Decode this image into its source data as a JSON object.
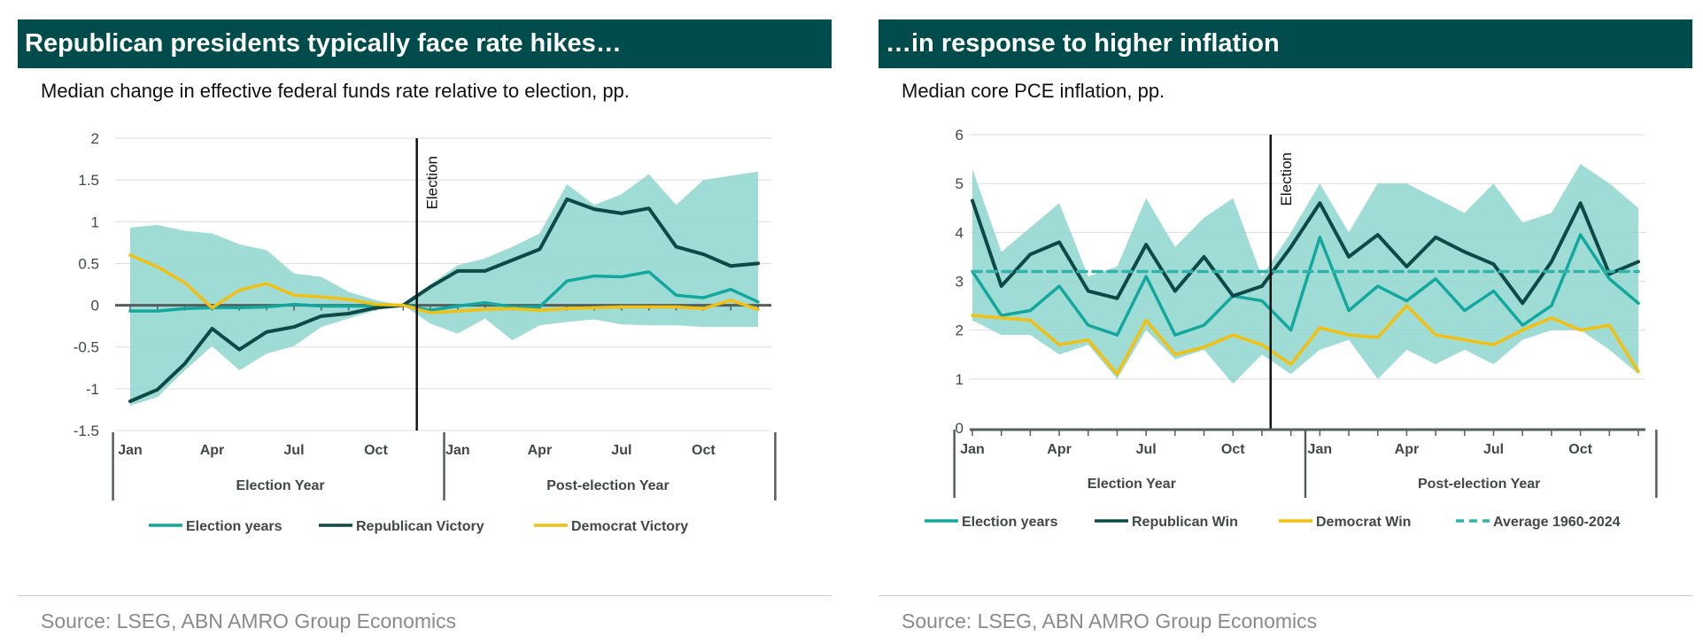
{
  "colors": {
    "banner": "#004c4c",
    "election_years": "#13a89e",
    "republican": "#0d4a47",
    "democrat": "#f2c011",
    "band": "#8fd6cf",
    "average": "#2fb3aa",
    "axis": "#555e5e",
    "grid": "#dcdcdc"
  },
  "panels": [
    {
      "banner": "Republican presidents typically face rate hikes…",
      "subtitle": "Median change in effective federal funds rate relative to election, pp.",
      "source": "Source:  LSEG, ABN AMRO Group Economics"
    },
    {
      "banner": "…in response to higher inflation",
      "subtitle": "Median core PCE inflation, pp.",
      "source": "Source: LSEG, ABN AMRO Group Economics"
    }
  ],
  "chart_data": [
    {
      "type": "line",
      "ylim": [
        -1.5,
        2
      ],
      "yticks": [
        2,
        1.5,
        1,
        0.5,
        0,
        -0.5,
        -1,
        -1.5
      ],
      "ytick_labels": [
        "2",
        "1.5",
        "1",
        "0.5",
        "0",
        "-0.5",
        "-1",
        "-1.5"
      ],
      "x_points": 24,
      "month_labels": [
        {
          "index": 0,
          "label": "Jan"
        },
        {
          "index": 3,
          "label": "Apr"
        },
        {
          "index": 6,
          "label": "Jul"
        },
        {
          "index": 9,
          "label": "Oct"
        },
        {
          "index": 12,
          "label": "Jan"
        },
        {
          "index": 15,
          "label": "Apr"
        },
        {
          "index": 18,
          "label": "Jul"
        },
        {
          "index": 21,
          "label": "Oct"
        }
      ],
      "groups": [
        {
          "label": "Election Year",
          "start": 0,
          "end": 11
        },
        {
          "label": "Post-election Year",
          "start": 12,
          "end": 23
        }
      ],
      "election_marker": {
        "label": "Election",
        "x": 10.5
      },
      "band": {
        "upper": [
          0.93,
          0.96,
          0.89,
          0.86,
          0.73,
          0.66,
          0.38,
          0.34,
          0.16,
          0.06,
          0.0,
          0.25,
          0.48,
          0.56,
          0.7,
          0.86,
          1.45,
          1.2,
          1.33,
          1.57,
          1.2,
          1.5,
          1.55,
          1.6
        ],
        "lower": [
          -1.2,
          -1.1,
          -0.78,
          -0.49,
          -0.78,
          -0.58,
          -0.49,
          -0.26,
          -0.16,
          -0.06,
          0.0,
          -0.22,
          -0.34,
          -0.16,
          -0.42,
          -0.24,
          -0.2,
          -0.17,
          -0.23,
          -0.24,
          -0.24,
          -0.26,
          -0.26,
          -0.26
        ]
      },
      "series": [
        {
          "name": "Election years",
          "color_key": "election_years",
          "values": [
            -0.07,
            -0.07,
            -0.04,
            -0.03,
            -0.03,
            -0.02,
            0.01,
            -0.01,
            -0.01,
            -0.01,
            0.0,
            -0.06,
            -0.01,
            0.03,
            -0.02,
            -0.02,
            0.29,
            0.35,
            0.34,
            0.4,
            0.12,
            0.09,
            0.19,
            0.04
          ]
        },
        {
          "name": "Republican Victory",
          "color_key": "republican",
          "values": [
            -1.15,
            -1.01,
            -0.7,
            -0.28,
            -0.53,
            -0.32,
            -0.26,
            -0.13,
            -0.1,
            -0.03,
            0.0,
            0.22,
            0.41,
            0.41,
            0.54,
            0.67,
            1.27,
            1.15,
            1.1,
            1.16,
            0.7,
            0.61,
            0.47,
            0.5
          ]
        },
        {
          "name": "Democrat Victory",
          "color_key": "democrat",
          "values": [
            0.6,
            0.46,
            0.27,
            -0.03,
            0.18,
            0.26,
            0.12,
            0.1,
            0.07,
            0.01,
            0.0,
            -0.09,
            -0.07,
            -0.05,
            -0.04,
            -0.06,
            -0.04,
            -0.03,
            -0.02,
            -0.02,
            -0.02,
            -0.04,
            0.06,
            -0.05
          ]
        }
      ]
    },
    {
      "type": "line",
      "ylim": [
        0,
        6
      ],
      "yticks": [
        6,
        5,
        4,
        3,
        2,
        1,
        0
      ],
      "ytick_labels": [
        "6",
        "5",
        "4",
        "3",
        "2",
        "1",
        "0"
      ],
      "x_points": 24,
      "month_labels": [
        {
          "index": 0,
          "label": "Jan"
        },
        {
          "index": 3,
          "label": "Apr"
        },
        {
          "index": 6,
          "label": "Jul"
        },
        {
          "index": 9,
          "label": "Oct"
        },
        {
          "index": 12,
          "label": "Jan"
        },
        {
          "index": 15,
          "label": "Apr"
        },
        {
          "index": 18,
          "label": "Jul"
        },
        {
          "index": 21,
          "label": "Oct"
        }
      ],
      "groups": [
        {
          "label": "Election Year",
          "start": 0,
          "end": 11
        },
        {
          "label": "Post-election Year",
          "start": 12,
          "end": 23
        }
      ],
      "election_marker": {
        "label": "Election",
        "x": 10.3
      },
      "band": {
        "upper": [
          5.3,
          3.6,
          4.1,
          4.6,
          3.1,
          3.3,
          4.7,
          3.7,
          4.3,
          4.7,
          3.1,
          4.0,
          5.0,
          4.0,
          5.0,
          5.0,
          4.7,
          4.4,
          5.0,
          4.2,
          4.4,
          5.4,
          5.0,
          4.5
        ],
        "lower": [
          2.2,
          1.9,
          1.9,
          1.5,
          1.7,
          1.0,
          2.0,
          1.4,
          1.6,
          0.9,
          1.5,
          1.1,
          1.6,
          1.8,
          1.0,
          1.6,
          1.3,
          1.6,
          1.3,
          1.8,
          2.0,
          2.0,
          1.6,
          1.1
        ]
      },
      "series": [
        {
          "name": "Election years",
          "color_key": "election_years",
          "values": [
            3.2,
            2.3,
            2.4,
            2.9,
            2.1,
            1.9,
            3.1,
            1.9,
            2.1,
            2.7,
            2.6,
            2.0,
            3.9,
            2.4,
            2.9,
            2.6,
            3.05,
            2.4,
            2.8,
            2.1,
            2.5,
            3.95,
            3.05,
            2.55
          ]
        },
        {
          "name": "Republican Win",
          "color_key": "republican",
          "values": [
            4.65,
            2.9,
            3.55,
            3.8,
            2.8,
            2.65,
            3.75,
            2.8,
            3.5,
            2.7,
            2.9,
            3.7,
            4.6,
            3.5,
            3.95,
            3.3,
            3.9,
            3.6,
            3.35,
            2.55,
            3.4,
            4.6,
            3.15,
            3.4
          ]
        },
        {
          "name": "Democrat Win",
          "color_key": "democrat",
          "values": [
            2.3,
            2.25,
            2.2,
            1.7,
            1.8,
            1.1,
            2.2,
            1.5,
            1.65,
            1.9,
            1.7,
            1.3,
            2.05,
            1.9,
            1.85,
            2.5,
            1.9,
            1.8,
            1.7,
            2.0,
            2.25,
            2.0,
            2.1,
            1.15
          ]
        },
        {
          "name": "Average 1960-2024",
          "color_key": "average",
          "dashed": true,
          "values": [
            3.2,
            3.2,
            3.2,
            3.2,
            3.2,
            3.2,
            3.2,
            3.2,
            3.2,
            3.2,
            3.2,
            3.2,
            3.2,
            3.2,
            3.2,
            3.2,
            3.2,
            3.2,
            3.2,
            3.2,
            3.2,
            3.2,
            3.2,
            3.2
          ]
        }
      ]
    }
  ]
}
